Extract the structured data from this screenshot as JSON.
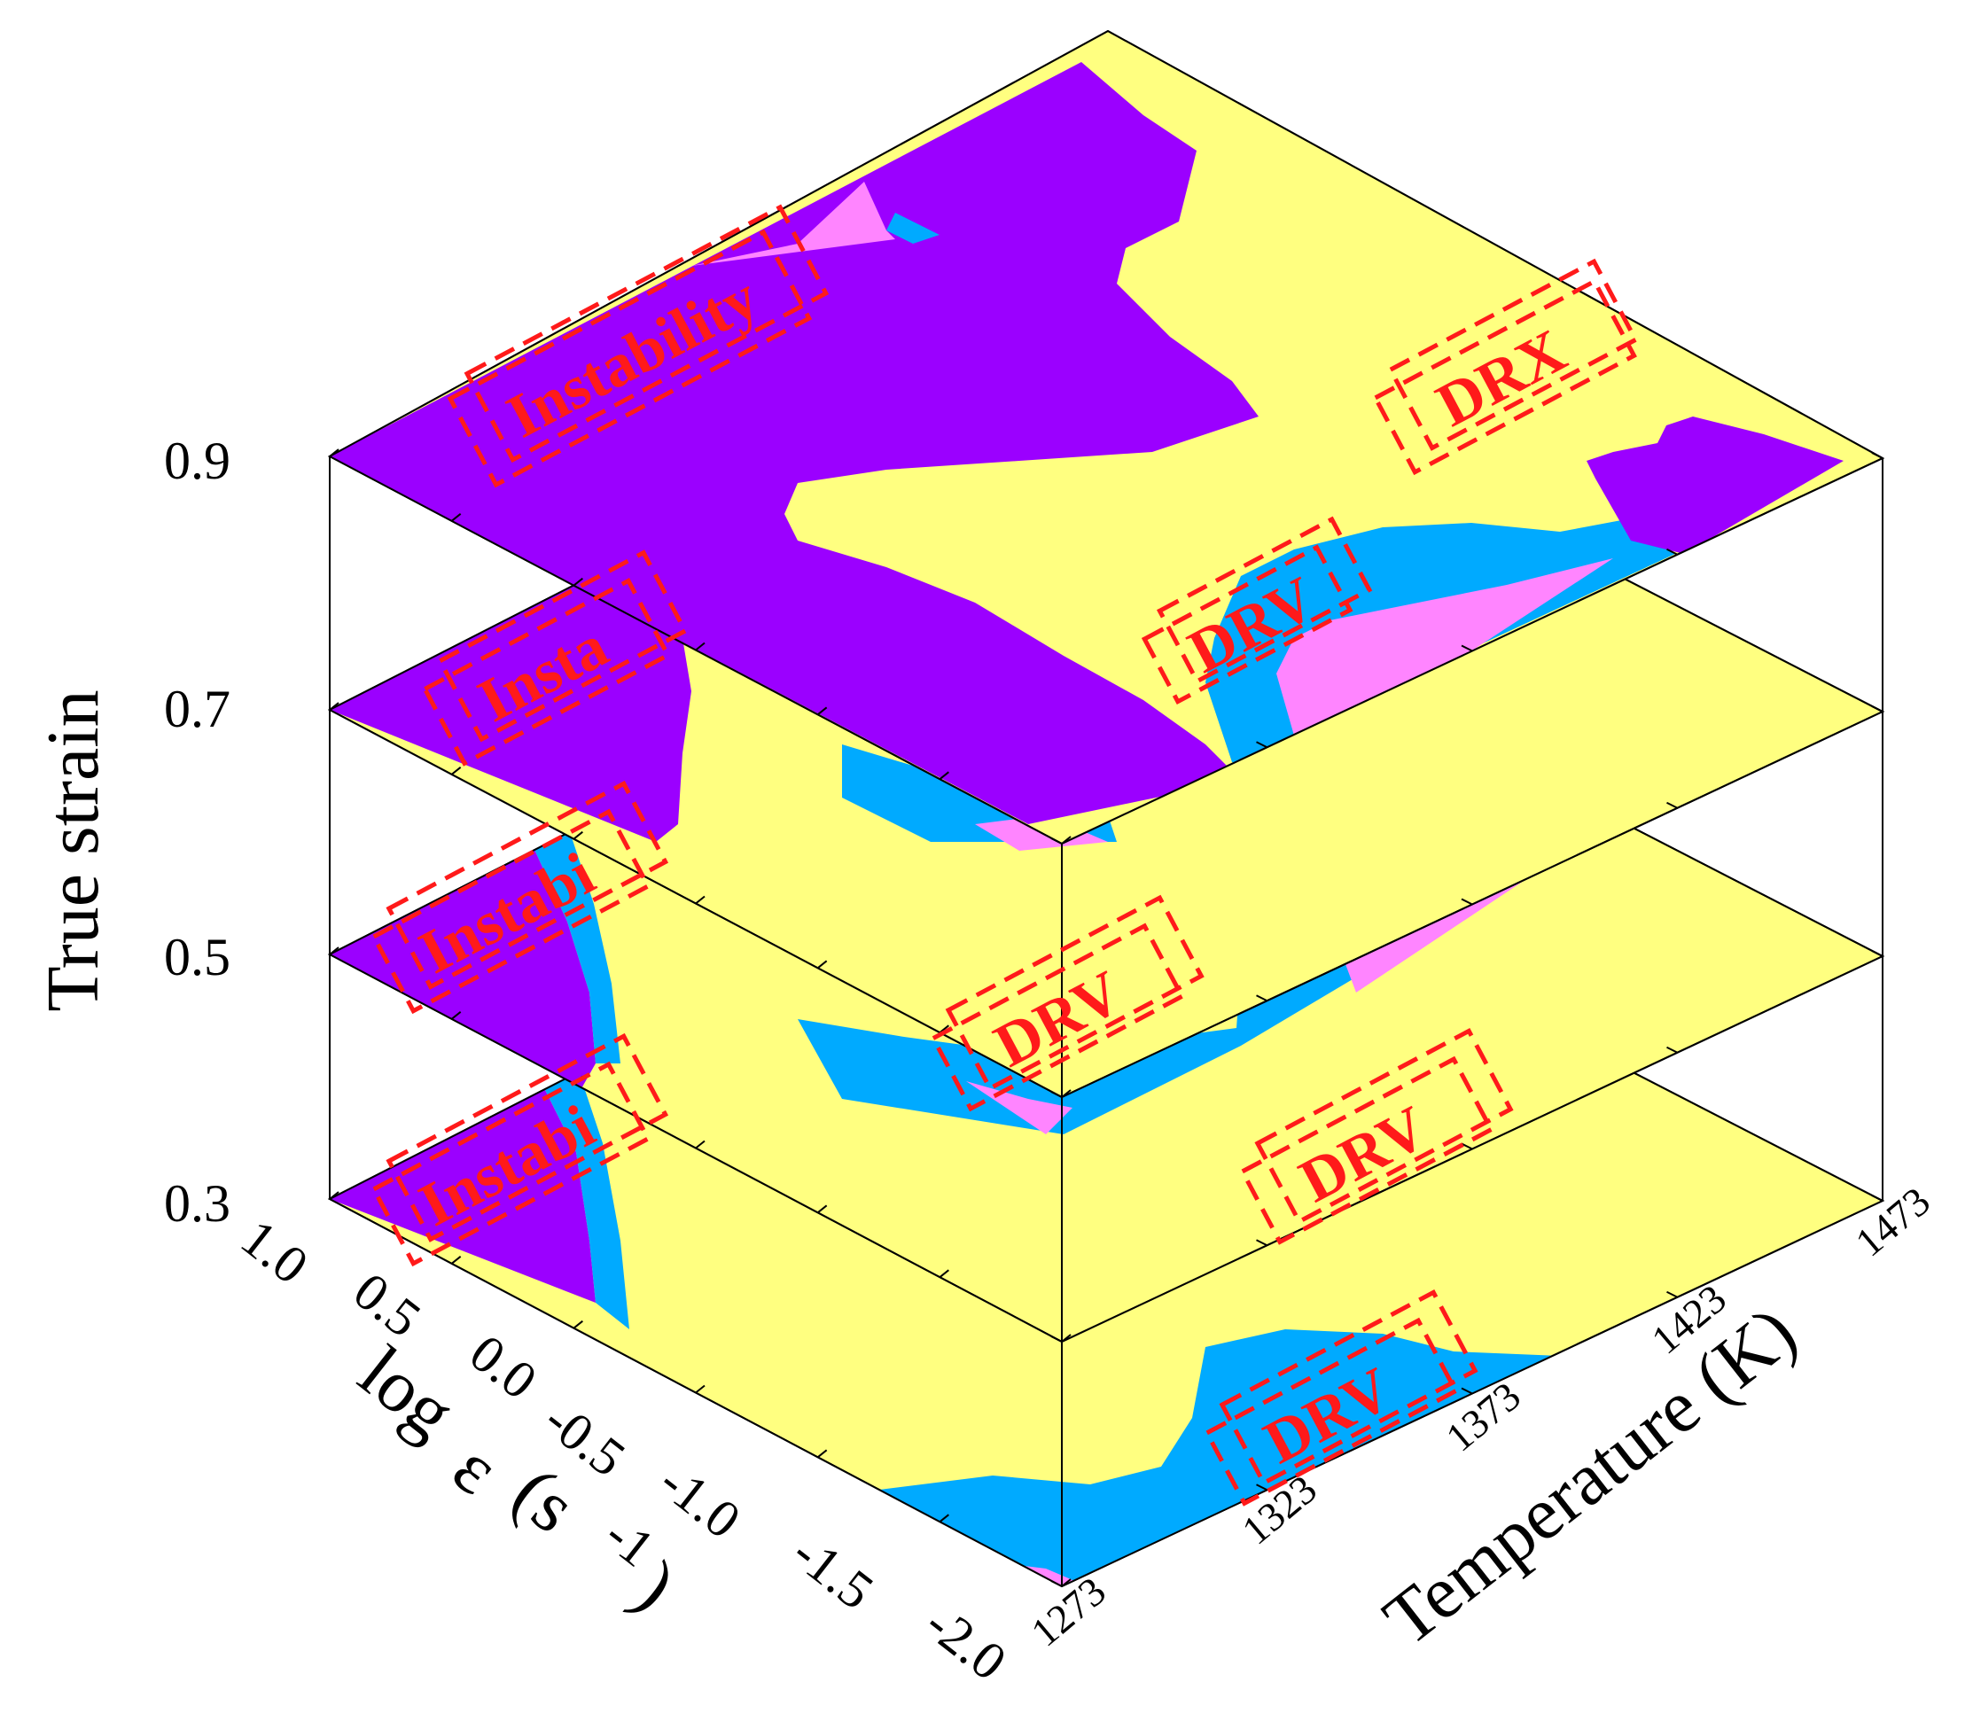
{
  "chart_data": {
    "type": "3d-stacked-contour",
    "title": "",
    "axes": {
      "z": {
        "label": "True strain",
        "ticks": [
          "0.3",
          "0.5",
          "0.7",
          "0.9"
        ]
      },
      "y": {
        "label_main": "log",
        "label_symbol": "ε",
        "label_unit": "(s",
        "label_sup": "-1",
        "label_close": ")",
        "ticks": [
          "1.0",
          "0.5",
          "0.0",
          "-0.5",
          "-1.0",
          "-1.5",
          "-2.0"
        ]
      },
      "x": {
        "label": "Temperature (K)",
        "ticks": [
          "1273",
          "1323",
          "1373",
          "1423",
          "1473"
        ]
      }
    },
    "layers": [
      {
        "strain": 0.3,
        "labels": [
          "Instabi",
          "DRV"
        ]
      },
      {
        "strain": 0.5,
        "labels": [
          "Instabi",
          "DRV"
        ]
      },
      {
        "strain": 0.7,
        "labels": [
          "Insta",
          "DRV"
        ]
      },
      {
        "strain": 0.9,
        "labels": [
          "Instability",
          "DRX",
          "DRV"
        ]
      }
    ],
    "colors": {
      "instability": "#9b00ff",
      "dri": "#ff85ff",
      "drv": "#00aaff",
      "drx": "#ffff80",
      "label": "#ff1a1a"
    }
  }
}
